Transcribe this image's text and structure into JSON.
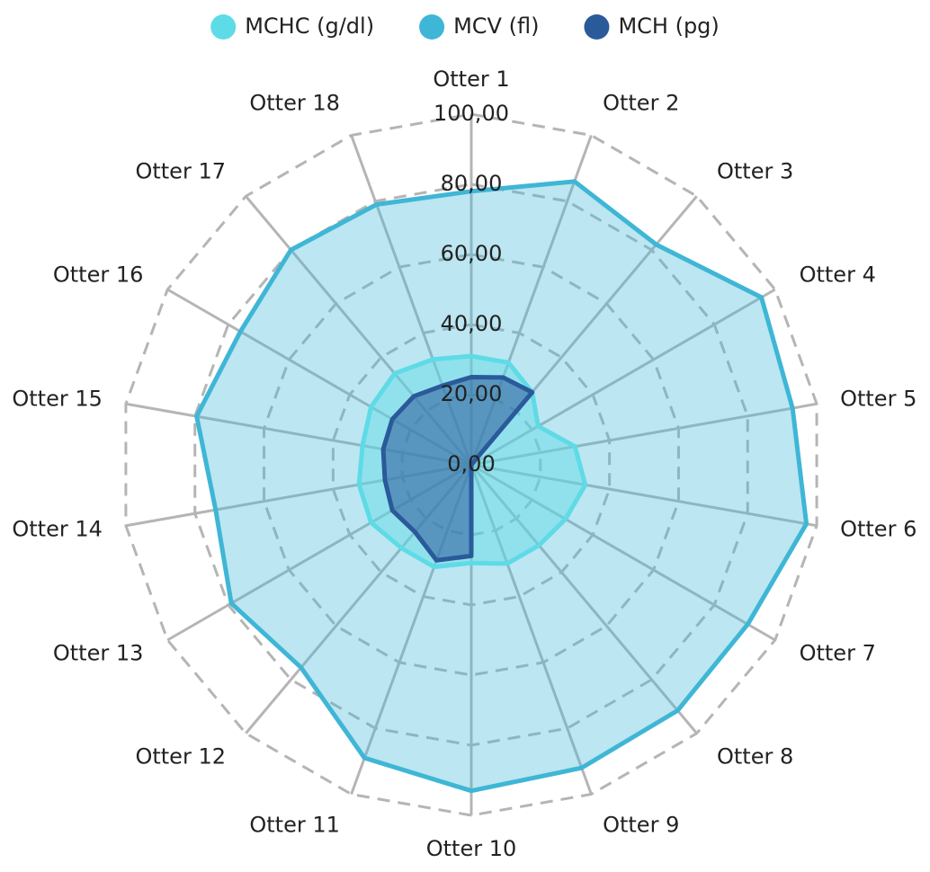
{
  "chart_data": {
    "type": "radar",
    "categories": [
      "Otter 1",
      "Otter 2",
      "Otter 3",
      "Otter 4",
      "Otter 5",
      "Otter 6",
      "Otter 7",
      "Otter 8",
      "Otter 9",
      "Otter 10",
      "Otter 11",
      "Otter 12",
      "Otter 13",
      "Otter 14",
      "Otter 15",
      "Otter 16",
      "Otter 17",
      "Otter 18"
    ],
    "series": [
      {
        "name": "MCHC (g/dl)",
        "color": "#5ddbe6",
        "values": [
          31,
          31,
          27,
          22,
          30,
          33,
          31,
          30,
          30,
          28,
          31,
          31,
          33,
          32.5,
          31.5,
          33,
          34,
          32
        ]
      },
      {
        "name": "MCV (fl)",
        "color": "#3fb6d6",
        "values": [
          78,
          86,
          82,
          95.5,
          93,
          97,
          91,
          91.5,
          92,
          93,
          89,
          75.5,
          79,
          74,
          79.5,
          76,
          80,
          79
        ]
      },
      {
        "name": "MCH (pg)",
        "color": "#2a5a9a",
        "values": [
          25,
          26.5,
          27,
          0,
          0,
          0,
          0,
          0,
          0,
          26,
          29,
          25,
          26,
          25,
          25.5,
          26,
          25.5,
          24
        ]
      }
    ],
    "ylim": [
      0,
      100
    ],
    "yticks": [
      {
        "value": 0,
        "label": "0,00"
      },
      {
        "value": 20,
        "label": "20,00"
      },
      {
        "value": 40,
        "label": "40,00"
      },
      {
        "value": 60,
        "label": "60,00"
      },
      {
        "value": 80,
        "label": "80,00"
      },
      {
        "value": 100,
        "label": "100,00"
      }
    ],
    "grid": true,
    "legend": "top"
  }
}
